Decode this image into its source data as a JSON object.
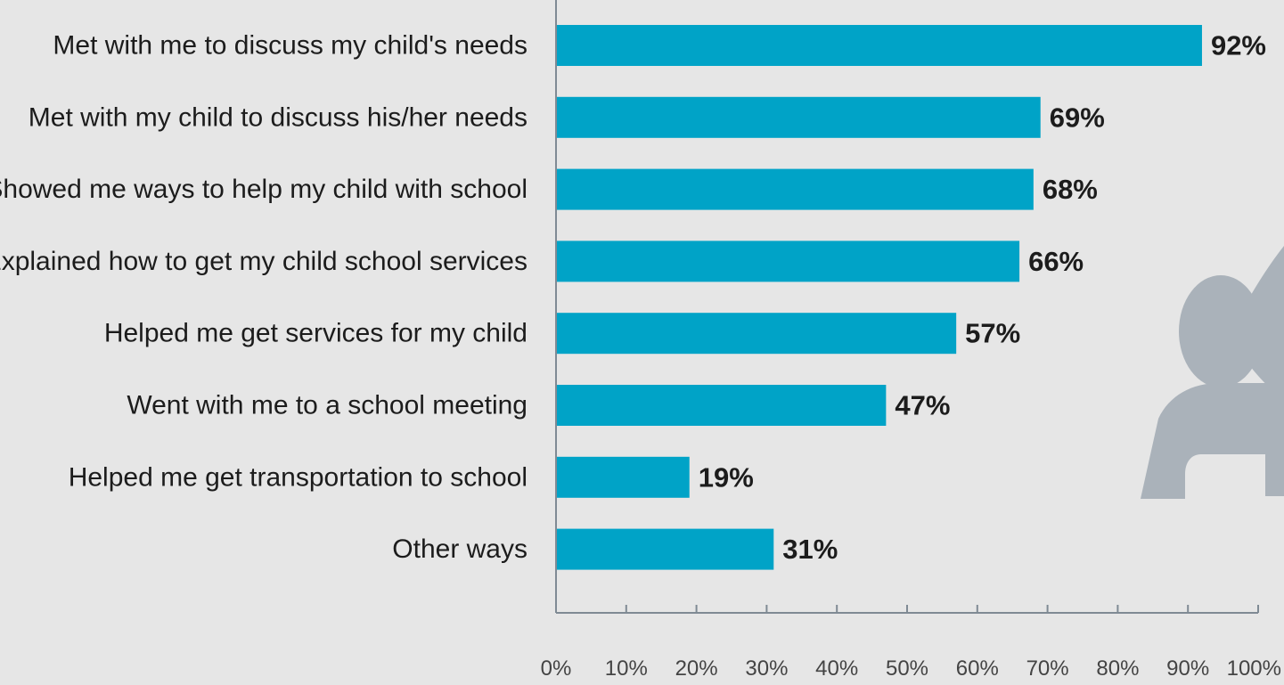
{
  "chart_data": {
    "type": "bar",
    "orientation": "horizontal",
    "categories": [
      "Met with me to discuss my child's needs",
      "Met with my child to discuss his/her needs",
      "Showed me ways to help my child with school",
      "Explained how to get my child school services",
      "Helped me get services for my child",
      "Went with me to a school meeting",
      "Helped me get transportation to school",
      "Other ways"
    ],
    "values": [
      92,
      69,
      68,
      66,
      57,
      47,
      19,
      31
    ],
    "value_labels": [
      "92%",
      "69%",
      "68%",
      "66%",
      "57%",
      "47%",
      "19%",
      "31%"
    ],
    "xlim": [
      0,
      100
    ],
    "x_ticks": [
      0,
      10,
      20,
      30,
      40,
      50,
      60,
      70,
      80,
      90,
      100
    ],
    "x_tick_labels": [
      "0%",
      "10%",
      "20%",
      "30%",
      "40%",
      "50%",
      "60%",
      "70%",
      "80%",
      "90%",
      "100%"
    ],
    "grid": false,
    "bar_color": "#00a3c7",
    "background_color": "#e6e6e6",
    "axis_color": "#7f8a94",
    "decoration_icon": "person-raising-hand-icon",
    "decoration_color": "#aab2ba"
  }
}
